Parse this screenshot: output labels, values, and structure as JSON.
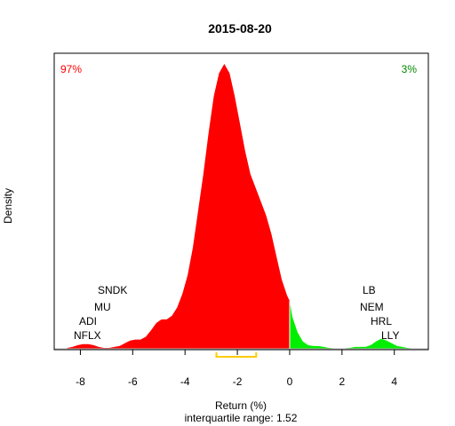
{
  "chart_data": {
    "type": "area",
    "title": "2015-08-20",
    "xlabel": "Return (%)",
    "ylabel": "Density",
    "subtitle": "interquartile range: 1.52",
    "xlim": [
      -9,
      5.3
    ],
    "ylim": [
      0,
      0.33
    ],
    "xticks": [
      "-8",
      "-6",
      "-4",
      "-2",
      "0",
      "2",
      "4"
    ],
    "xtick_values": [
      -8,
      -6,
      -4,
      -2,
      0,
      2,
      4
    ],
    "split_at": 0,
    "negative": {
      "share": "97%",
      "color": "#ff0000"
    },
    "positive": {
      "share": "3%",
      "color": "#00ee00"
    },
    "density": {
      "x": [
        -8.5,
        -8.3,
        -8.1,
        -7.9,
        -7.7,
        -7.5,
        -7.3,
        -7.1,
        -6.9,
        -6.7,
        -6.5,
        -6.3,
        -6.1,
        -5.9,
        -5.7,
        -5.5,
        -5.3,
        -5.1,
        -4.9,
        -4.7,
        -4.5,
        -4.3,
        -4.1,
        -3.9,
        -3.7,
        -3.5,
        -3.3,
        -3.1,
        -2.9,
        -2.7,
        -2.5,
        -2.3,
        -2.1,
        -1.9,
        -1.7,
        -1.5,
        -1.3,
        -1.1,
        -0.9,
        -0.7,
        -0.5,
        -0.3,
        -0.1,
        0,
        0.1,
        0.3,
        0.5,
        0.7,
        0.9,
        1.1,
        1.3,
        1.5,
        1.7,
        1.9,
        2.1,
        2.3,
        2.5,
        2.7,
        2.9,
        3.1,
        3.3,
        3.5,
        3.7,
        3.9,
        4.1,
        4.3,
        4.5,
        4.8
      ],
      "y": [
        0.001,
        0.002,
        0.004,
        0.005,
        0.005,
        0.004,
        0.002,
        0.001,
        0.001,
        0.002,
        0.003,
        0.006,
        0.009,
        0.01,
        0.01,
        0.013,
        0.02,
        0.028,
        0.032,
        0.032,
        0.036,
        0.045,
        0.06,
        0.08,
        0.11,
        0.15,
        0.19,
        0.235,
        0.275,
        0.3,
        0.31,
        0.3,
        0.275,
        0.245,
        0.215,
        0.19,
        0.175,
        0.16,
        0.145,
        0.125,
        0.1,
        0.075,
        0.058,
        0.052,
        0.035,
        0.018,
        0.008,
        0.004,
        0.003,
        0.003,
        0.002,
        0.001,
        0.0005,
        0.0003,
        0.0005,
        0.001,
        0.002,
        0.002,
        0.002,
        0.004,
        0.008,
        0.011,
        0.009,
        0.006,
        0.003,
        0.002,
        0.001,
        0
      ]
    },
    "left_labels": [
      "SNDK",
      "MU",
      "ADI",
      "NFLX"
    ],
    "right_labels": [
      "LB",
      "NEM",
      "HRL",
      "LLY"
    ],
    "iqr": {
      "q1": -2.8,
      "q3": -1.28,
      "color": "#ffcc00"
    },
    "baseline_color": "#bebebe"
  }
}
